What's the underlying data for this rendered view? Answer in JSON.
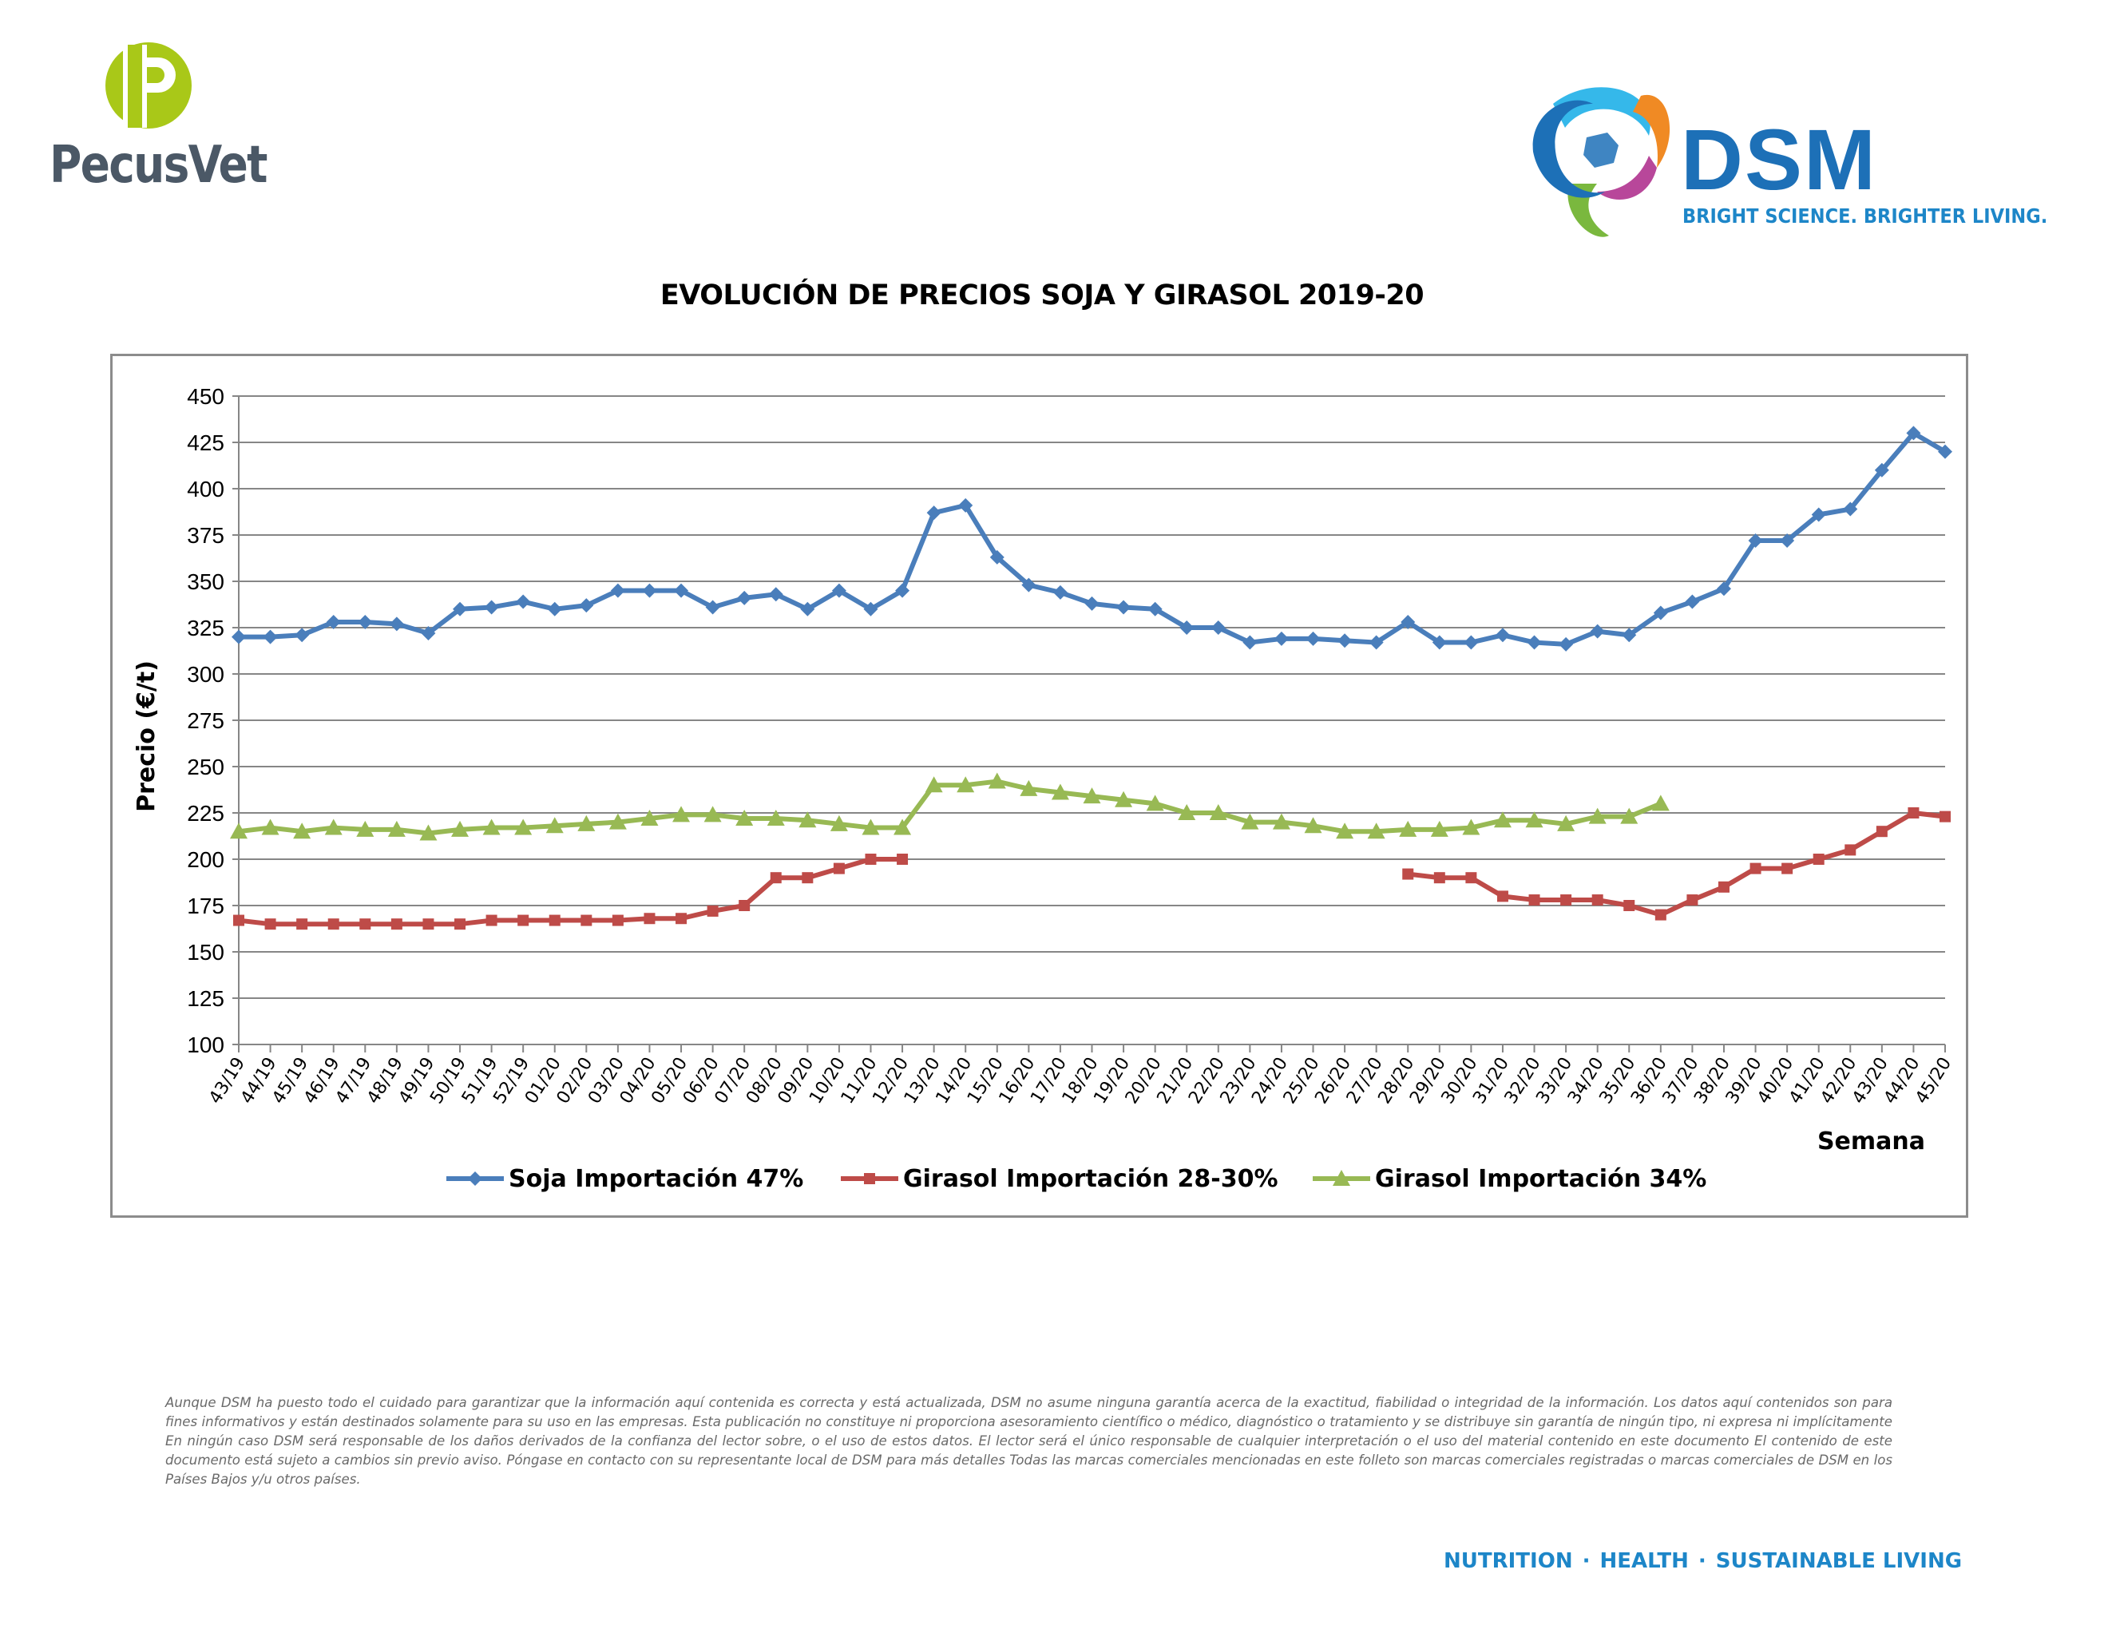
{
  "brand_left": {
    "name": "PecusVet",
    "mark_letter": "P"
  },
  "brand_right": {
    "name": "DSM",
    "tagline": "BRIGHT SCIENCE. BRIGHTER LIVING."
  },
  "colors": {
    "soja": "#4a7ebb",
    "girasol_28": "#be4b48",
    "girasol_34": "#98b954",
    "gridline": "#868686",
    "pecusvet_green": "#a9c818",
    "dsm_blue": "#1d70b7"
  },
  "chart_data": {
    "type": "line",
    "title": "EVOLUCIÓN DE PRECIOS SOJA Y GIRASOL 2019-20",
    "xlabel": "Semana",
    "ylabel": "Precio (€/t)",
    "ylim": [
      100,
      450
    ],
    "yticks": [
      100,
      125,
      150,
      175,
      200,
      225,
      250,
      275,
      300,
      325,
      350,
      375,
      400,
      425,
      450
    ],
    "grid": true,
    "legend_position": "bottom",
    "categories": [
      "43/19",
      "44/19",
      "45/19",
      "46/19",
      "47/19",
      "48/19",
      "49/19",
      "50/19",
      "51/19",
      "52/19",
      "01/20",
      "02/20",
      "03/20",
      "04/20",
      "05/20",
      "06/20",
      "07/20",
      "08/20",
      "09/20",
      "10/20",
      "11/20",
      "12/20",
      "13/20",
      "14/20",
      "15/20",
      "16/20",
      "17/20",
      "18/20",
      "19/20",
      "20/20",
      "21/20",
      "22/20",
      "23/20",
      "24/20",
      "25/20",
      "26/20",
      "27/20",
      "28/20",
      "29/20",
      "30/20",
      "31/20",
      "32/20",
      "33/20",
      "34/20",
      "35/20",
      "36/20",
      "37/20",
      "38/20",
      "39/20",
      "40/20",
      "41/20",
      "42/20",
      "43/20",
      "44/20",
      "45/20"
    ],
    "series": [
      {
        "name": "Soja Importación 47%",
        "marker": "diamond",
        "values": [
          320,
          320,
          321,
          328,
          328,
          327,
          322,
          335,
          336,
          339,
          335,
          337,
          345,
          345,
          345,
          336,
          341,
          343,
          335,
          345,
          335,
          345,
          387,
          391,
          363,
          348,
          344,
          338,
          336,
          335,
          325,
          325,
          317,
          319,
          319,
          318,
          317,
          328,
          317,
          317,
          321,
          317,
          316,
          323,
          321,
          333,
          339,
          346,
          372,
          372,
          386,
          389,
          410,
          430,
          420
        ]
      },
      {
        "name": "Girasol Importación 28-30%",
        "marker": "square",
        "values": [
          167,
          165,
          165,
          165,
          165,
          165,
          165,
          165,
          167,
          167,
          167,
          167,
          167,
          168,
          168,
          172,
          175,
          190,
          190,
          195,
          200,
          200,
          null,
          null,
          null,
          null,
          null,
          null,
          null,
          null,
          null,
          null,
          null,
          null,
          null,
          null,
          null,
          192,
          190,
          190,
          180,
          178,
          178,
          178,
          175,
          170,
          178,
          185,
          195,
          195,
          200,
          205,
          215,
          225,
          223
        ]
      },
      {
        "name": "Girasol Importación 34%",
        "marker": "triangle",
        "values": [
          215,
          217,
          215,
          217,
          216,
          216,
          214,
          216,
          217,
          217,
          218,
          219,
          220,
          222,
          224,
          224,
          222,
          222,
          221,
          219,
          217,
          217,
          240,
          240,
          242,
          238,
          236,
          234,
          232,
          230,
          225,
          225,
          220,
          220,
          218,
          215,
          215,
          216,
          216,
          217,
          221,
          221,
          219,
          223,
          223,
          230,
          null,
          null,
          null,
          null,
          null,
          null,
          null,
          null,
          null
        ]
      }
    ]
  },
  "disclaimer": "Aunque DSM ha puesto todo el cuidado para garantizar que la información aquí contenida es correcta y está actualizada, DSM no asume ninguna garantía acerca de la exactitud, fiabilidad o integridad de la información. Los datos aquí contenidos son para fines informativos y están destinados solamente para su uso en las empresas. Esta publicación no constituye ni proporciona asesoramiento científico o médico, diagnóstico o tratamiento y se distribuye sin garantía de ningún tipo, ni expresa ni implícitamente En ningún caso DSM será responsable de los daños derivados de la confianza del lector sobre, o el uso de estos datos. El lector será el único responsable de cualquier interpretación o el uso del material contenido en este documento El contenido de este documento está sujeto a cambios sin previo aviso. Póngase en contacto con su representante local de DSM para más detalles Todas las marcas comerciales mencionadas en este folleto son marcas comerciales registradas o marcas comerciales de DSM en los Países Bajos y/u otros países.",
  "footer": {
    "items": [
      "NUTRITION",
      "HEALTH",
      "SUSTAINABLE LIVING"
    ],
    "separator": "·"
  }
}
